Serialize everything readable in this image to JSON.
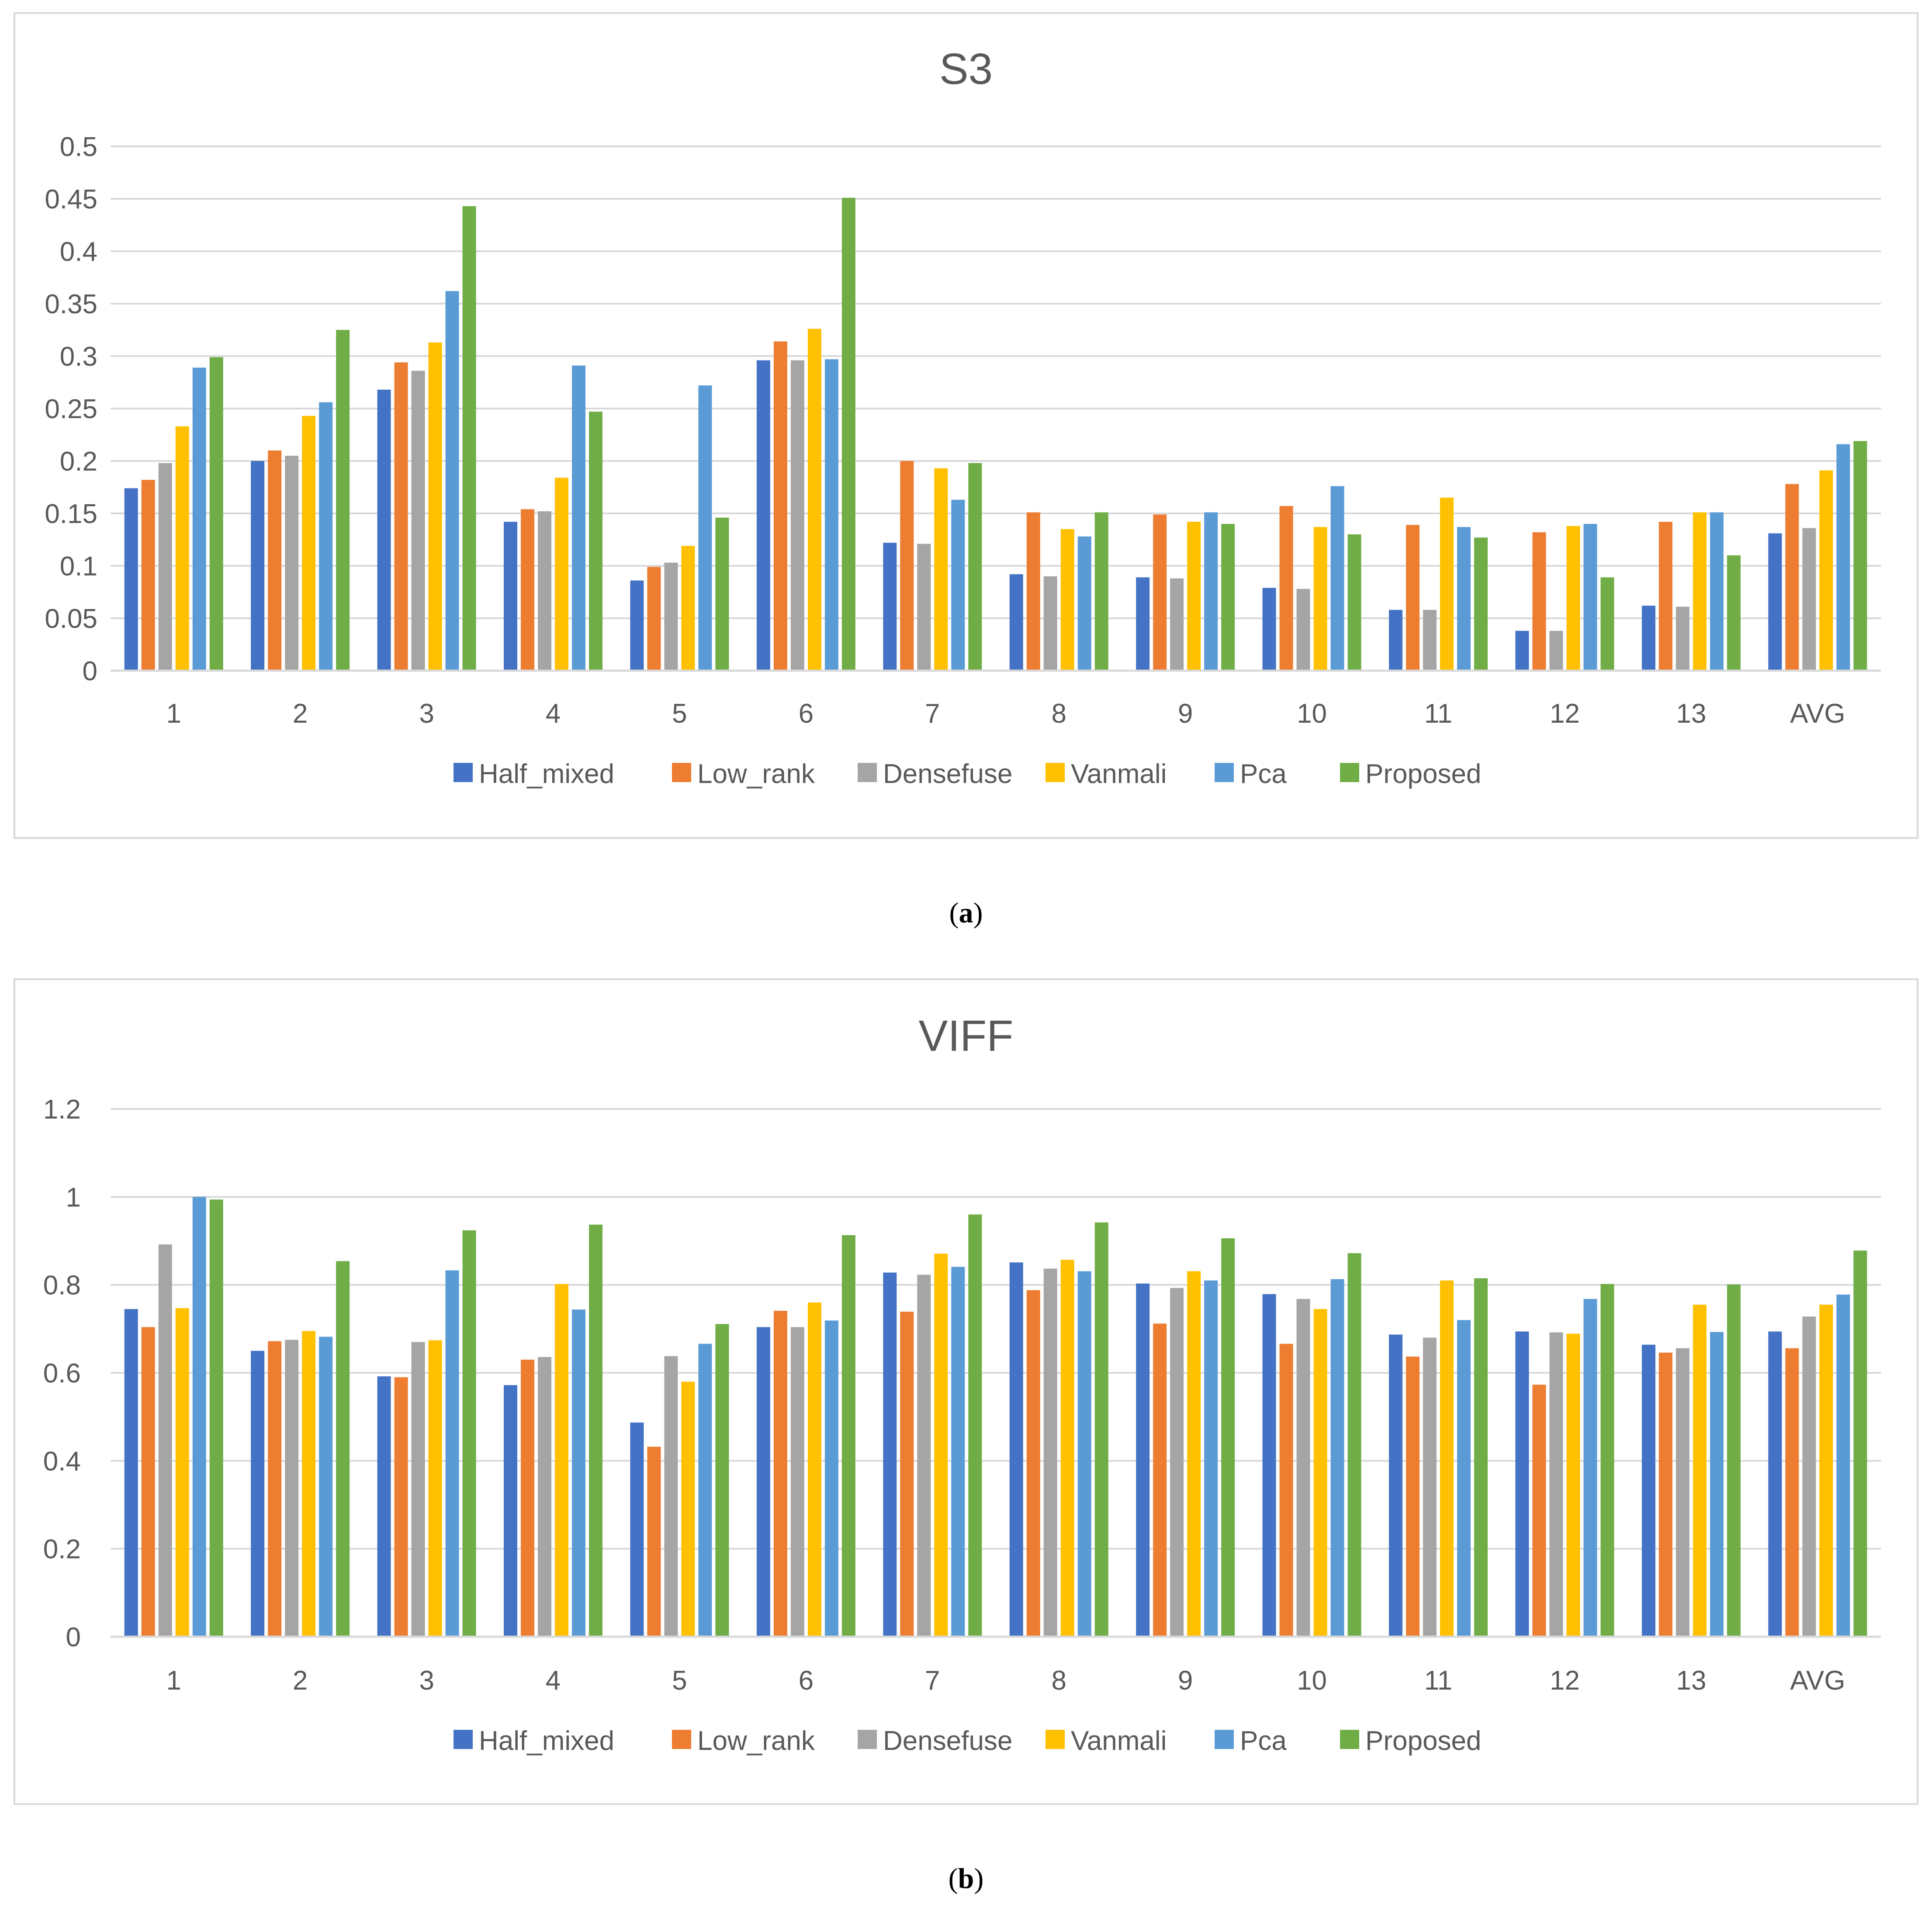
{
  "colors": {
    "Half_mixed": "#4472c4",
    "Low_rank": "#ed7d31",
    "Densefuse": "#a5a5a5",
    "Vanmali": "#ffc000",
    "Pca": "#5b9bd5",
    "Proposed": "#70ad47",
    "grid": "#d9d9d9",
    "text": "#595959"
  },
  "captions": {
    "a_open": "(",
    "a_letter": "a",
    "a_close": ")",
    "b_open": "(",
    "b_letter": "b",
    "b_close": ")"
  },
  "chart_data": [
    {
      "type": "bar",
      "title": "S3",
      "xlabel": "",
      "ylabel": "",
      "ylim": [
        0,
        0.5
      ],
      "yticks": [
        "0",
        "0.05",
        "0.1",
        "0.15",
        "0.2",
        "0.25",
        "0.3",
        "0.35",
        "0.4",
        "0.45",
        "0.5"
      ],
      "ytick_values": [
        0,
        0.05,
        0.1,
        0.15,
        0.2,
        0.25,
        0.3,
        0.35,
        0.4,
        0.45,
        0.5
      ],
      "legend_position": "bottom",
      "categories": [
        "1",
        "2",
        "3",
        "4",
        "5",
        "6",
        "7",
        "8",
        "9",
        "10",
        "11",
        "12",
        "13",
        "AVG"
      ],
      "series": [
        {
          "name": "Half_mixed",
          "values": [
            0.174,
            0.2,
            0.268,
            0.142,
            0.086,
            0.296,
            0.122,
            0.092,
            0.089,
            0.079,
            0.058,
            0.038,
            0.062,
            0.131
          ]
        },
        {
          "name": "Low_rank",
          "values": [
            0.182,
            0.21,
            0.294,
            0.154,
            0.099,
            0.314,
            0.2,
            0.151,
            0.149,
            0.157,
            0.139,
            0.132,
            0.142,
            0.178
          ]
        },
        {
          "name": "Densefuse",
          "values": [
            0.198,
            0.205,
            0.286,
            0.152,
            0.103,
            0.296,
            0.121,
            0.09,
            0.088,
            0.078,
            0.058,
            0.038,
            0.061,
            0.136
          ]
        },
        {
          "name": "Vanmali",
          "values": [
            0.233,
            0.243,
            0.313,
            0.184,
            0.119,
            0.326,
            0.193,
            0.135,
            0.142,
            0.137,
            0.165,
            0.138,
            0.151,
            0.191
          ]
        },
        {
          "name": "Pca",
          "values": [
            0.289,
            0.256,
            0.362,
            0.291,
            0.272,
            0.297,
            0.163,
            0.128,
            0.151,
            0.176,
            0.137,
            0.14,
            0.151,
            0.216
          ]
        },
        {
          "name": "Proposed",
          "values": [
            0.299,
            0.325,
            0.443,
            0.247,
            0.146,
            0.451,
            0.198,
            0.151,
            0.14,
            0.13,
            0.127,
            0.089,
            0.11,
            0.219
          ]
        }
      ]
    },
    {
      "type": "bar",
      "title": "VIFF",
      "xlabel": "",
      "ylabel": "",
      "ylim": [
        0,
        1.2
      ],
      "yticks": [
        "0",
        "0.2",
        "0.4",
        "0.6",
        "0.8",
        "1",
        "1.2"
      ],
      "ytick_values": [
        0,
        0.2,
        0.4,
        0.6,
        0.8,
        1.0,
        1.2
      ],
      "legend_position": "bottom",
      "categories": [
        "1",
        "2",
        "3",
        "4",
        "5",
        "6",
        "7",
        "8",
        "9",
        "10",
        "11",
        "12",
        "13",
        "AVG"
      ],
      "series": [
        {
          "name": "Half_mixed",
          "values": [
            0.745,
            0.65,
            0.592,
            0.572,
            0.487,
            0.704,
            0.828,
            0.851,
            0.803,
            0.779,
            0.687,
            0.694,
            0.664,
            0.694
          ]
        },
        {
          "name": "Low_rank",
          "values": [
            0.704,
            0.672,
            0.59,
            0.63,
            0.432,
            0.741,
            0.739,
            0.788,
            0.712,
            0.666,
            0.637,
            0.573,
            0.646,
            0.656
          ]
        },
        {
          "name": "Densefuse",
          "values": [
            0.892,
            0.675,
            0.67,
            0.636,
            0.638,
            0.704,
            0.823,
            0.837,
            0.793,
            0.768,
            0.68,
            0.692,
            0.656,
            0.728
          ]
        },
        {
          "name": "Vanmali",
          "values": [
            0.747,
            0.695,
            0.674,
            0.802,
            0.58,
            0.76,
            0.871,
            0.857,
            0.831,
            0.745,
            0.81,
            0.689,
            0.755,
            0.755
          ]
        },
        {
          "name": "Pca",
          "values": [
            1.0,
            0.682,
            0.833,
            0.744,
            0.666,
            0.719,
            0.841,
            0.831,
            0.81,
            0.813,
            0.72,
            0.768,
            0.693,
            0.778
          ]
        },
        {
          "name": "Proposed",
          "values": [
            0.994,
            0.854,
            0.924,
            0.937,
            0.711,
            0.913,
            0.96,
            0.942,
            0.906,
            0.872,
            0.815,
            0.802,
            0.801,
            0.878
          ]
        }
      ]
    }
  ]
}
